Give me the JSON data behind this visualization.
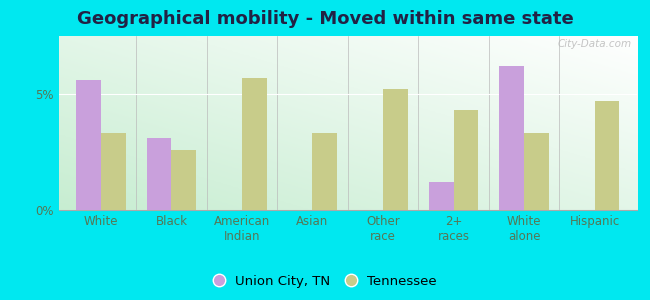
{
  "title": "Geographical mobility - Moved within same state",
  "categories": [
    "White",
    "Black",
    "American\nIndian",
    "Asian",
    "Other\nrace",
    "2+\nraces",
    "White\nalone",
    "Hispanic"
  ],
  "union_city": [
    5.6,
    3.1,
    0.0,
    0.0,
    0.0,
    1.2,
    6.2,
    0.0
  ],
  "tennessee": [
    3.3,
    2.6,
    5.7,
    3.3,
    5.2,
    4.3,
    3.3,
    4.7
  ],
  "union_city_color": "#c9a0dc",
  "tennessee_color": "#c8cc8a",
  "outer_bg": "#00e8f0",
  "bar_width": 0.35,
  "ylim": [
    0,
    7.5
  ],
  "yticks": [
    0,
    5
  ],
  "ytick_labels": [
    "0%",
    "5%"
  ],
  "legend_union_city": "Union City, TN",
  "legend_tennessee": "Tennessee",
  "title_fontsize": 13,
  "tick_fontsize": 8.5,
  "legend_fontsize": 9.5,
  "title_color": "#222244",
  "tick_color": "#557755"
}
